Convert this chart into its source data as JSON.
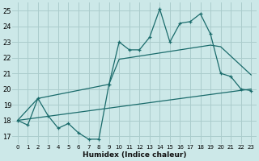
{
  "xlabel": "Humidex (Indice chaleur)",
  "xlim": [
    -0.5,
    23.5
  ],
  "ylim": [
    16.5,
    25.5
  ],
  "xticks": [
    0,
    1,
    2,
    3,
    4,
    5,
    6,
    7,
    8,
    9,
    10,
    11,
    12,
    13,
    14,
    15,
    16,
    17,
    18,
    19,
    20,
    21,
    22,
    23
  ],
  "yticks": [
    17,
    18,
    19,
    20,
    21,
    22,
    23,
    24,
    25
  ],
  "bg_color": "#cce8e8",
  "grid_color": "#aacccc",
  "line_color": "#1a6b6b",
  "line1_x": [
    0,
    1,
    2,
    3,
    4,
    5,
    6,
    7,
    8,
    9,
    10,
    11,
    12,
    13,
    14,
    15,
    16,
    17,
    18,
    19,
    20,
    21,
    22,
    23
  ],
  "line1_y": [
    18.0,
    17.7,
    19.4,
    18.3,
    17.5,
    17.8,
    17.2,
    16.8,
    16.8,
    20.3,
    23.0,
    22.5,
    22.5,
    23.3,
    25.1,
    23.0,
    24.2,
    24.3,
    24.8,
    23.5,
    21.0,
    20.8,
    20.0,
    19.9
  ],
  "line2_x": [
    0,
    23
  ],
  "line2_y": [
    18.0,
    20.0
  ],
  "line3_x": [
    0,
    2,
    9,
    10,
    13,
    14,
    19,
    20,
    23
  ],
  "line3_y": [
    18.0,
    19.4,
    20.3,
    21.9,
    22.2,
    22.3,
    22.8,
    22.7,
    20.9
  ]
}
